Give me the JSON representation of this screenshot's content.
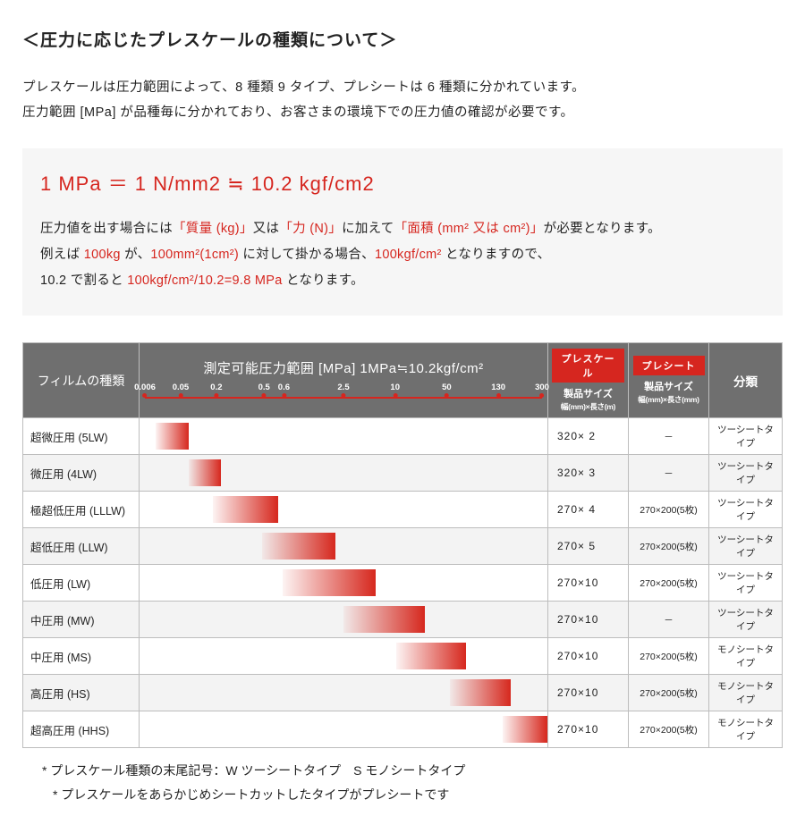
{
  "title": "＜圧力に応じたプレスケールの種類について＞",
  "intro": {
    "p1": "プレスケールは圧力範囲によって、8 種類 9 タイプ、プレシートは 6 種類に分かれています。",
    "p2": "圧力範囲 [MPa] が品種毎に分かれており、お客さまの環境下での圧力値の確認が必要です。"
  },
  "formula": {
    "main": "1 MPa ＝ 1 N/mm2 ≒ 10.2 kgf/cm2",
    "l1a": "圧力値を出す場合には",
    "l1b": "「質量 (kg)」",
    "l1c": "又は",
    "l1d": "「力 (N)」",
    "l1e": "に加えて",
    "l1f": "「面積 (mm² 又は cm²)」",
    "l1g": "が必要となります。",
    "l2a": "例えば ",
    "l2b": "100kg",
    "l2c": " が、",
    "l2d": "100mm²(1cm²)",
    "l2e": " に対して掛かる場合、",
    "l2f": "100kgf/cm²",
    "l2g": " となりますので、",
    "l3a": "10.2 で割ると ",
    "l3b": "100kgf/cm²/10.2=9.8 MPa",
    "l3c": " となります。"
  },
  "table": {
    "film_head": "フィルムの種類",
    "range_title": "測定可能圧力範囲 [MPa] 1MPa≒10.2kgf/cm²",
    "ticks": [
      {
        "label": "0.006",
        "pos": 0
      },
      {
        "label": "0.05",
        "pos": 9
      },
      {
        "label": "0.2",
        "pos": 18
      },
      {
        "label": "0.5",
        "pos": 30
      },
      {
        "label": "0.6",
        "pos": 35
      },
      {
        "label": "2.5",
        "pos": 50
      },
      {
        "label": "10",
        "pos": 63
      },
      {
        "label": "50",
        "pos": 76
      },
      {
        "label": "130",
        "pos": 89
      },
      {
        "label": "300",
        "pos": 100
      }
    ],
    "ps_badge": "プレスケール",
    "pt_badge": "プレシート",
    "size_sub": "製品サイズ",
    "size_sub2a": "幅(mm)×長さ(m)",
    "size_sub2b": "幅(mm)×長さ(mm)",
    "cls_head": "分類",
    "rows": [
      {
        "name": "超微圧用 (5LW)",
        "bar_start": 4,
        "bar_end": 12,
        "size1": "320× 2",
        "size2": "－",
        "cls": "ツーシートタイプ"
      },
      {
        "name": "微圧用 (4LW)",
        "bar_start": 12,
        "bar_end": 20,
        "size1": "320× 3",
        "size2": "－",
        "cls": "ツーシートタイプ"
      },
      {
        "name": "極超低圧用 (LLLW)",
        "bar_start": 18,
        "bar_end": 34,
        "size1": "270× 4",
        "size2": "270×200(5枚)",
        "cls": "ツーシートタイプ"
      },
      {
        "name": "超低圧用 (LLW)",
        "bar_start": 30,
        "bar_end": 48,
        "size1": "270× 5",
        "size2": "270×200(5枚)",
        "cls": "ツーシートタイプ"
      },
      {
        "name": "低圧用 (LW)",
        "bar_start": 35,
        "bar_end": 58,
        "size1": "270×10",
        "size2": "270×200(5枚)",
        "cls": "ツーシートタイプ"
      },
      {
        "name": "中圧用 (MW)",
        "bar_start": 50,
        "bar_end": 70,
        "size1": "270×10",
        "size2": "－",
        "cls": "ツーシートタイプ"
      },
      {
        "name": "中圧用 (MS)",
        "bar_start": 63,
        "bar_end": 80,
        "size1": "270×10",
        "size2": "270×200(5枚)",
        "cls": "モノシートタイプ"
      },
      {
        "name": "高圧用 (HS)",
        "bar_start": 76,
        "bar_end": 91,
        "size1": "270×10",
        "size2": "270×200(5枚)",
        "cls": "モノシートタイプ"
      },
      {
        "name": "超高圧用 (HHS)",
        "bar_start": 89,
        "bar_end": 100,
        "size1": "270×10",
        "size2": "270×200(5枚)",
        "cls": "モノシートタイプ"
      }
    ]
  },
  "notes": {
    "n1": "* プレスケール種類の末尾記号：W ツーシートタイプ　S モノシートタイプ",
    "n2": "* プレスケールをあらかじめシートカットしたタイプがプレシートです"
  },
  "colors": {
    "accent": "#d6261f",
    "header_bg": "#6f6f6f",
    "box_bg": "#f6f6f6",
    "row_alt": "#f3f3f3",
    "border": "#bdbdbd"
  }
}
